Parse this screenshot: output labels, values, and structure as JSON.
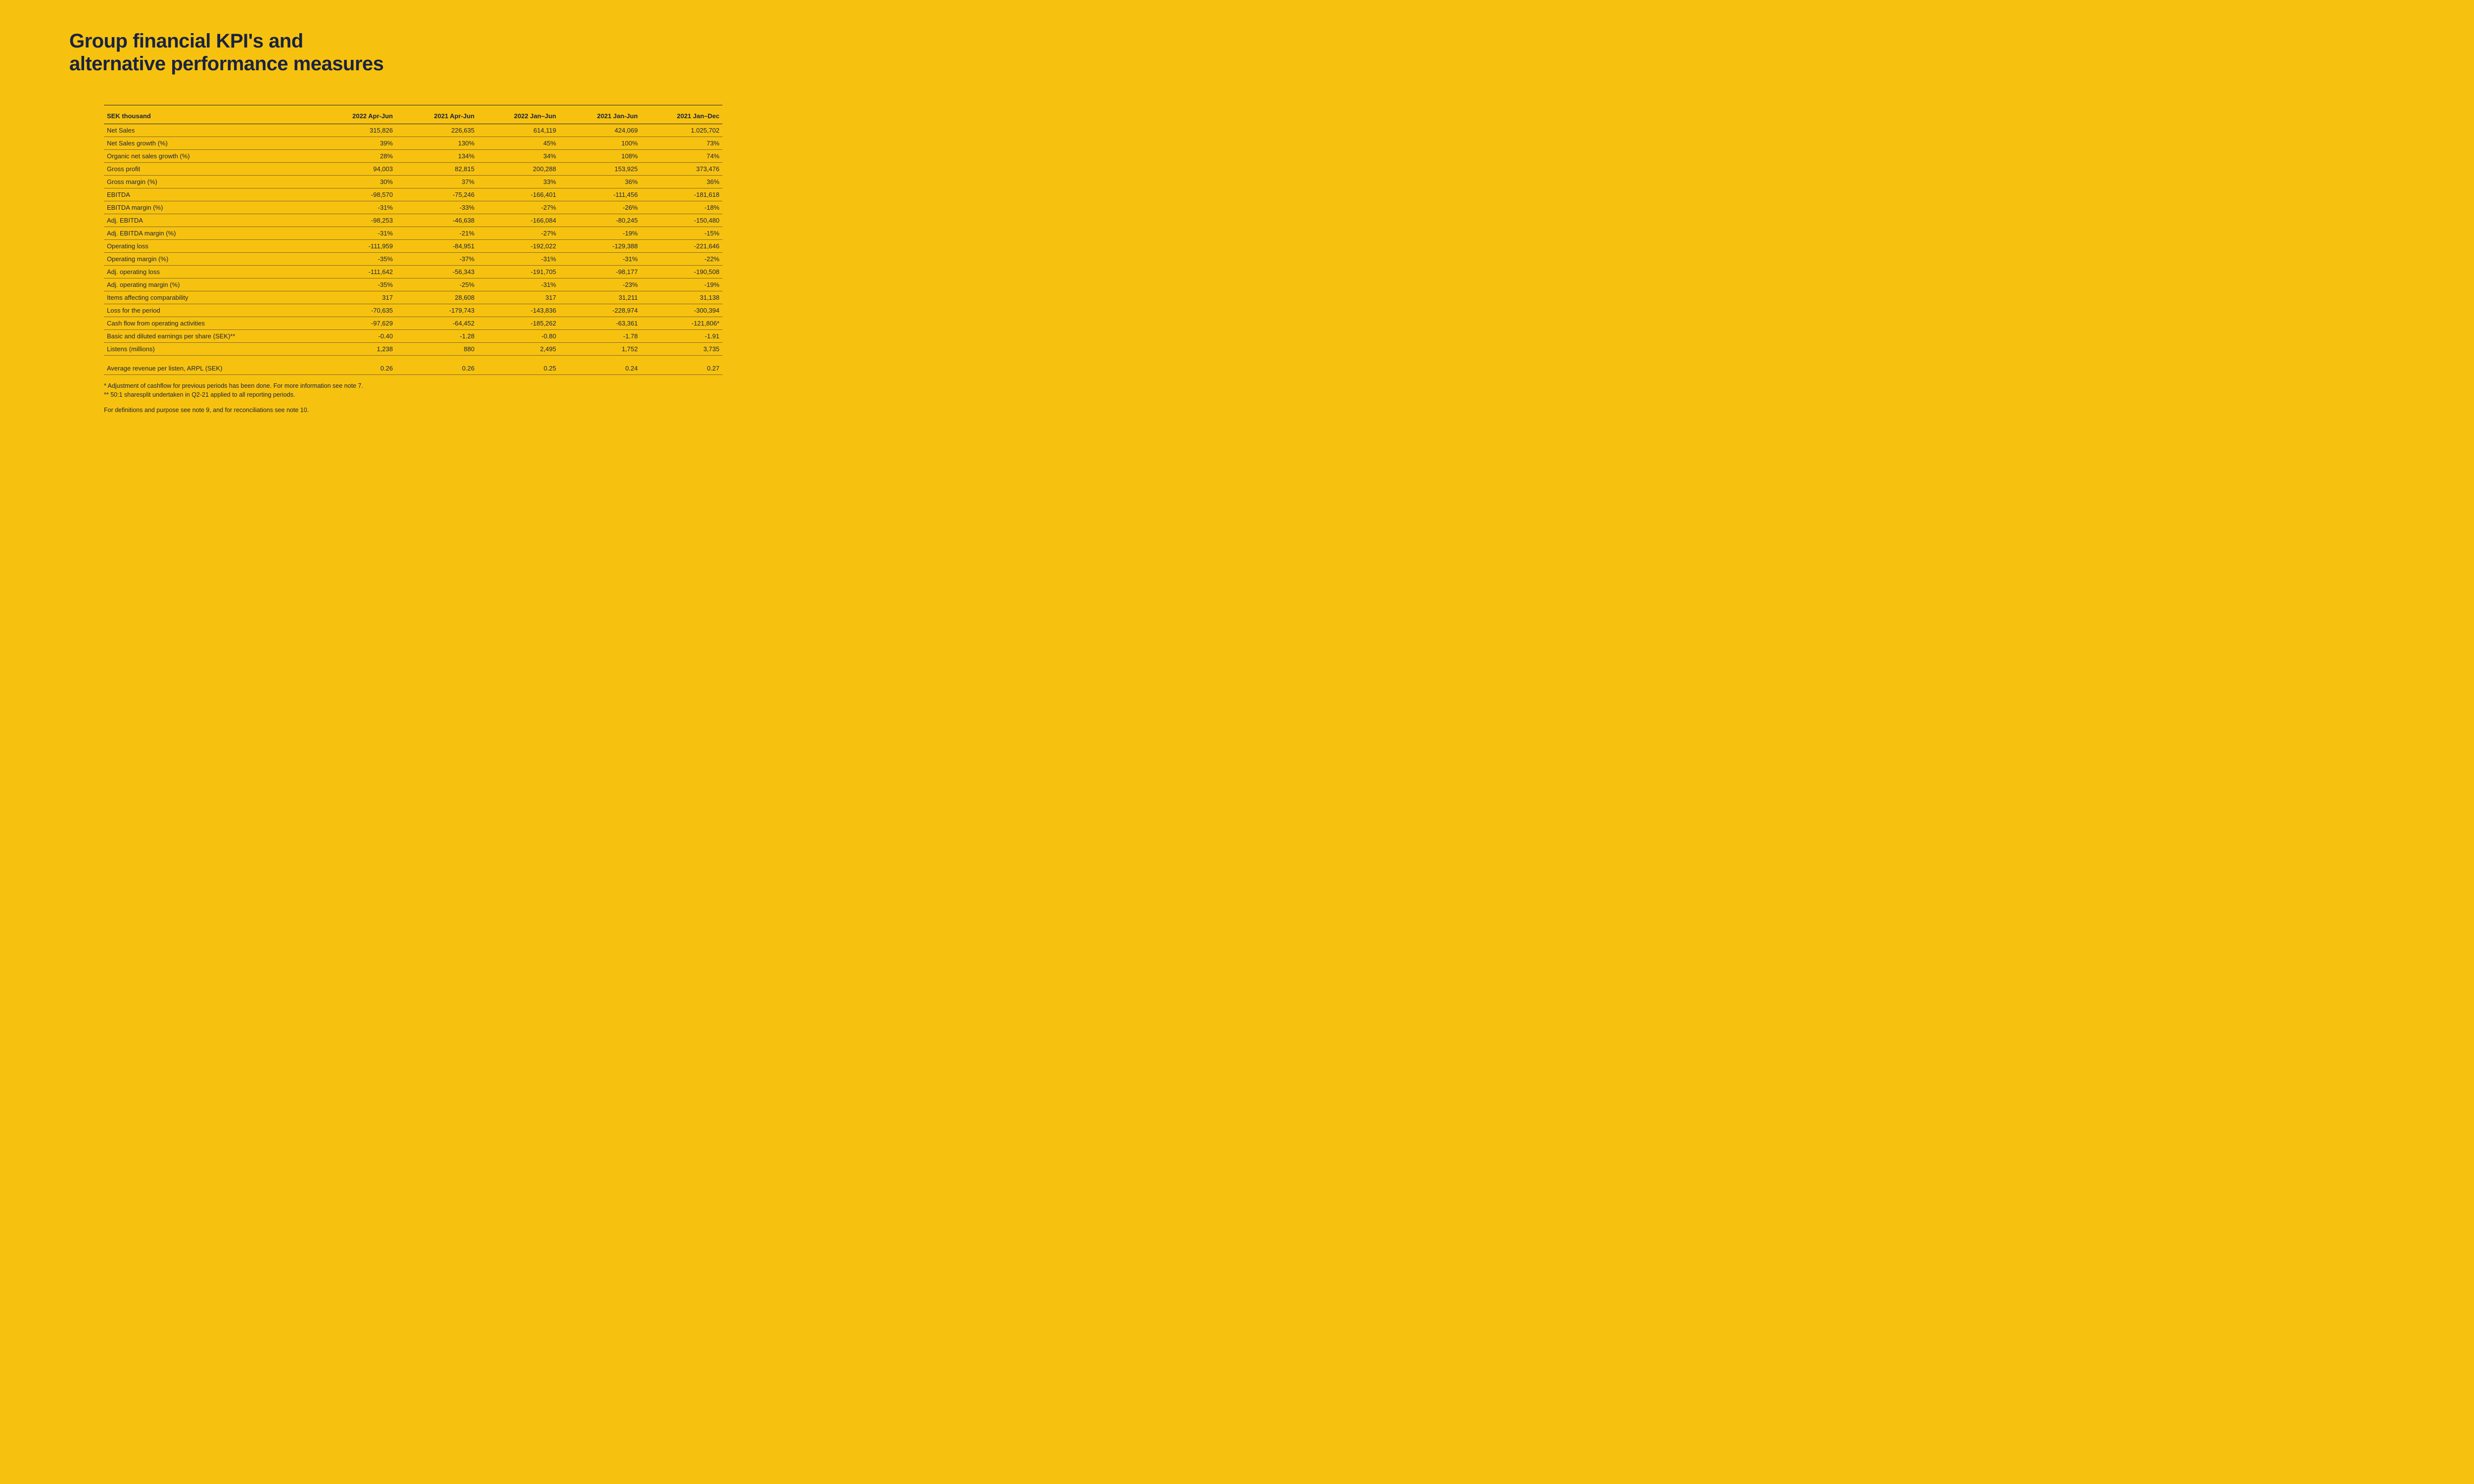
{
  "colors": {
    "background": "#f7c20f",
    "text": "#1a2340",
    "rule_heavy": "#1a2340",
    "rule_light": "rgba(26,35,64,0.55)"
  },
  "typography": {
    "title_fontsize_pt": 30,
    "title_fontweight": 800,
    "body_fontsize_pt": 10,
    "header_fontweight": 700
  },
  "title_line1": "Group financial KPI's and",
  "title_line2": "alternative performance measures",
  "table": {
    "type": "table",
    "unit_label": "SEK thousand",
    "columns": [
      "2022 Apr-Jun",
      "2021 Apr-Jun",
      "2022 Jan–Jun",
      "2021 Jan-Jun",
      "2021 Jan–Dec"
    ],
    "rows": [
      {
        "label": "Net Sales",
        "v": [
          "315,826",
          "226,635",
          "614,119",
          "424,069",
          "1.025,702"
        ]
      },
      {
        "label": "Net Sales growth (%)",
        "v": [
          "39%",
          "130%",
          "45%",
          "100%",
          "73%"
        ]
      },
      {
        "label": "Organic net sales growth (%)",
        "v": [
          "28%",
          "134%",
          "34%",
          "108%",
          "74%"
        ]
      },
      {
        "label": "Gross profit",
        "v": [
          "94,003",
          "82,815",
          "200,288",
          "153,925",
          "373,476"
        ]
      },
      {
        "label": "Gross margin (%)",
        "v": [
          "30%",
          "37%",
          "33%",
          "36%",
          "36%"
        ]
      },
      {
        "label": "EBITDA",
        "v": [
          "-98,570",
          "-75,246",
          "-166,401",
          "-111,456",
          "-181,618"
        ]
      },
      {
        "label": "EBITDA margin (%)",
        "v": [
          "-31%",
          "-33%",
          "-27%",
          "-26%",
          "-18%"
        ]
      },
      {
        "label": "Adj. EBITDA",
        "v": [
          "-98,253",
          "-46,638",
          "-166,084",
          "-80,245",
          "-150,480"
        ]
      },
      {
        "label": "Adj. EBITDA margin (%)",
        "v": [
          "-31%",
          "-21%",
          "-27%",
          "-19%",
          "-15%"
        ]
      },
      {
        "label": "Operating loss",
        "v": [
          "-111,959",
          "-84,951",
          "-192,022",
          "-129,388",
          "-221,646"
        ]
      },
      {
        "label": "Operating margin (%)",
        "v": [
          "-35%",
          "-37%",
          "-31%",
          "-31%",
          "-22%"
        ]
      },
      {
        "label": "Adj. operating loss",
        "v": [
          "-111,642",
          "-56,343",
          "-191,705",
          "-98,177",
          "-190,508"
        ]
      },
      {
        "label": "Adj. operating margin (%)",
        "v": [
          "-35%",
          "-25%",
          "-31%",
          "-23%",
          "-19%"
        ]
      },
      {
        "label": "Items affecting comparability",
        "v": [
          "317",
          "28,608",
          "317",
          "31,211",
          "31,138"
        ]
      },
      {
        "label": "Loss for the period",
        "v": [
          "-70,635",
          "-179,743",
          "-143,836",
          "-228,974",
          "-300,394"
        ]
      },
      {
        "label": "Cash flow from operating activities",
        "v": [
          "-97,629",
          "-64,452",
          "-185,262",
          "-63,361",
          "-121,806*"
        ]
      },
      {
        "label": "Basic and diluted earnings per share (SEK)**",
        "v": [
          "-0.40",
          "-1.28",
          "-0.80",
          "-1.78",
          "-1.91"
        ]
      },
      {
        "label": "Listens (millions)",
        "v": [
          "1,238",
          "880",
          "2,495",
          "1,752",
          "3,735"
        ]
      }
    ],
    "gap_row": {
      "label": "Average revenue per listen, ARPL (SEK)",
      "v": [
        "0.26",
        "0.26",
        "0.25",
        "0.24",
        "0.27"
      ]
    }
  },
  "footnotes": {
    "f1": "* Adjustment of cashflow for previous periods has been done. For more information see note 7.",
    "f2": "** 50:1 sharesplit undertaken in Q2-21 applied to all reporting periods.",
    "f3": "For definitions and purpose see note 9, and for reconciliations see note 10."
  }
}
